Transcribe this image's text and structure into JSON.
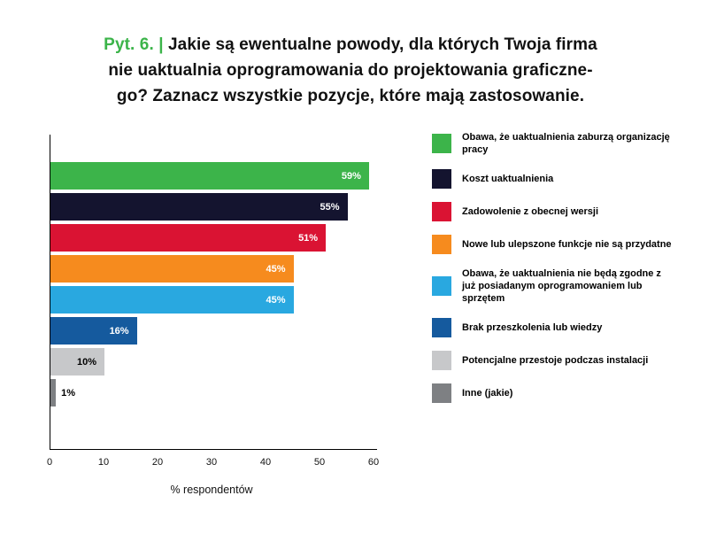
{
  "title": {
    "prefix": "Pyt. 6. | ",
    "lines": [
      "Jakie są ewentualne powody, dla których Twoja firma",
      "nie uaktualnia oprogramowania do projektowania graficzne-",
      "go? Zaznacz wszystkie pozycje, które mają zastosowanie."
    ]
  },
  "chart_data": {
    "type": "bar",
    "orientation": "horizontal",
    "title": "Pyt. 6. | Jakie są ewentualne powody, dla których Twoja firma nie uaktualnia oprogramowania do projektowania graficznego? Zaznacz wszystkie pozycje, które mają zastosowanie.",
    "xlabel": "% respondentów",
    "xlim": [
      0,
      60
    ],
    "xticks": [
      0,
      10,
      20,
      30,
      40,
      50,
      60
    ],
    "grid": false,
    "legend_position": "right",
    "categories": [
      "Obawa, że uaktualnienia zaburzą organizację pracy",
      "Koszt uaktualnienia",
      "Zadowolenie z obecnej wersji",
      "Nowe lub ulepszone funkcje nie są przydatne",
      "Obawa, że uaktualnienia nie będą zgodne z już posiadanym oprogramowaniem lub sprzętem",
      "Brak przeszkolenia lub wiedzy",
      "Potencjalne przestoje podczas instalacji",
      "Inne (jakie)"
    ],
    "values": [
      59,
      55,
      51,
      45,
      45,
      16,
      10,
      1
    ],
    "value_labels": [
      "59%",
      "55%",
      "51%",
      "45%",
      "45%",
      "16%",
      "10%",
      "1%"
    ],
    "colors": [
      "#3cb44a",
      "#14142f",
      "#da1333",
      "#f68b1e",
      "#29a8e0",
      "#155a9e",
      "#c7c8ca",
      "#7e8083"
    ],
    "label_colors": [
      "#ffffff",
      "#ffffff",
      "#ffffff",
      "#ffffff",
      "#ffffff",
      "#ffffff",
      "#000000",
      "#000000"
    ],
    "label_inside": [
      true,
      true,
      true,
      true,
      true,
      true,
      true,
      false
    ]
  },
  "legend": {
    "items": [
      {
        "label": "Obawa, że uaktualnienia zaburzą organizację pracy",
        "color": "#3cb44a"
      },
      {
        "label": "Koszt uaktualnienia",
        "color": "#14142f"
      },
      {
        "label": "Zadowolenie z obecnej wersji",
        "color": "#da1333"
      },
      {
        "label": "Nowe lub ulepszone funkcje nie są przydatne",
        "color": "#f68b1e"
      },
      {
        "label": "Obawa, że uaktualnienia nie będą zgodne z już posiadanym oprogramowaniem lub sprzętem",
        "color": "#29a8e0"
      },
      {
        "label": "Brak przeszkolenia lub wiedzy",
        "color": "#155a9e"
      },
      {
        "label": "Potencjalne przestoje podczas instalacji",
        "color": "#c7c8ca"
      },
      {
        "label": "Inne (jakie)",
        "color": "#7e8083"
      }
    ]
  }
}
